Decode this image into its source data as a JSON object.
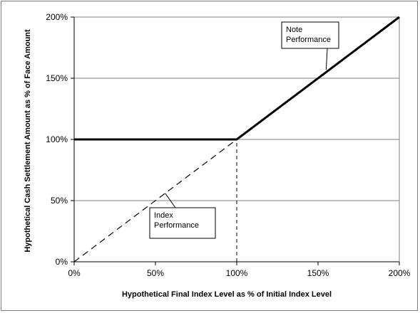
{
  "chart_data": {
    "type": "line",
    "xlabel": "Hypothetical Final Index Level as % of Initial  Index Level",
    "ylabel": "Hypothetical Cash Settlement  Amount as % of Face Amount",
    "xlim": [
      0,
      200
    ],
    "ylim": [
      0,
      200
    ],
    "x_ticks": [
      "0%",
      "50%",
      "100%",
      "150%",
      "200%"
    ],
    "x_tick_values": [
      0,
      50,
      100,
      150,
      200
    ],
    "y_ticks": [
      "0%",
      "50%",
      "100%",
      "150%",
      "200%"
    ],
    "y_tick_values": [
      0,
      50,
      100,
      150,
      200
    ],
    "grid": "horizontal",
    "series": [
      {
        "name": "Note Performance",
        "style": "solid-bold",
        "x": [
          0,
          100,
          200
        ],
        "y": [
          100,
          100,
          200
        ]
      },
      {
        "name": "Index Performance",
        "style": "dashed",
        "x": [
          0,
          100
        ],
        "y": [
          0,
          100
        ]
      }
    ],
    "reference_lines": [
      {
        "style": "dashed",
        "x": [
          100,
          100
        ],
        "y": [
          0,
          100
        ]
      }
    ],
    "annotations": [
      {
        "lines": [
          "Note",
          "Performance"
        ],
        "points_to": [
          155,
          157
        ]
      },
      {
        "lines": [
          "Index",
          "Performance"
        ],
        "points_to": [
          56,
          56
        ]
      }
    ],
    "colors": {
      "line": "#000000",
      "grid": "#808080",
      "frame": "#7f7f7f"
    }
  }
}
